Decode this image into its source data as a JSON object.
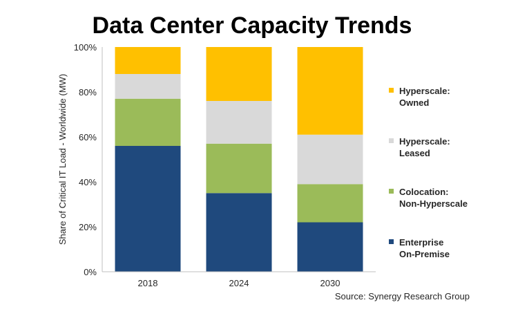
{
  "chart_data": {
    "type": "bar",
    "stacked": true,
    "title": "Data Center Capacity Trends",
    "xlabel": "",
    "ylabel": "Share of Critical IT Load - Worldwide (MW)",
    "ylim": [
      0,
      100
    ],
    "y_ticks": [
      "0%",
      "20%",
      "40%",
      "60%",
      "80%",
      "100%"
    ],
    "y_tick_values": [
      0,
      20,
      40,
      60,
      80,
      100
    ],
    "categories": [
      "2018",
      "2024",
      "2030"
    ],
    "series": [
      {
        "name": "Enterprise On-Premise",
        "legend_lines": [
          "Enterprise",
          "On-Premise"
        ],
        "color": "#1f497d",
        "values": [
          56,
          35,
          22
        ]
      },
      {
        "name": "Colocation: Non-Hyperscale",
        "legend_lines": [
          "Colocation:",
          "Non-Hyperscale"
        ],
        "color": "#9bbb59",
        "values": [
          21,
          22,
          17
        ]
      },
      {
        "name": "Hyperscale: Leased",
        "legend_lines": [
          "Hyperscale:",
          "Leased"
        ],
        "color": "#d9d9d9",
        "values": [
          11,
          19,
          22
        ]
      },
      {
        "name": "Hyperscale: Owned",
        "legend_lines": [
          "Hyperscale:",
          "Owned"
        ],
        "color": "#ffc000",
        "values": [
          12,
          24,
          39
        ]
      }
    ],
    "legend_position": "right",
    "grid": false,
    "source": "Source: Synergy Research Group"
  }
}
